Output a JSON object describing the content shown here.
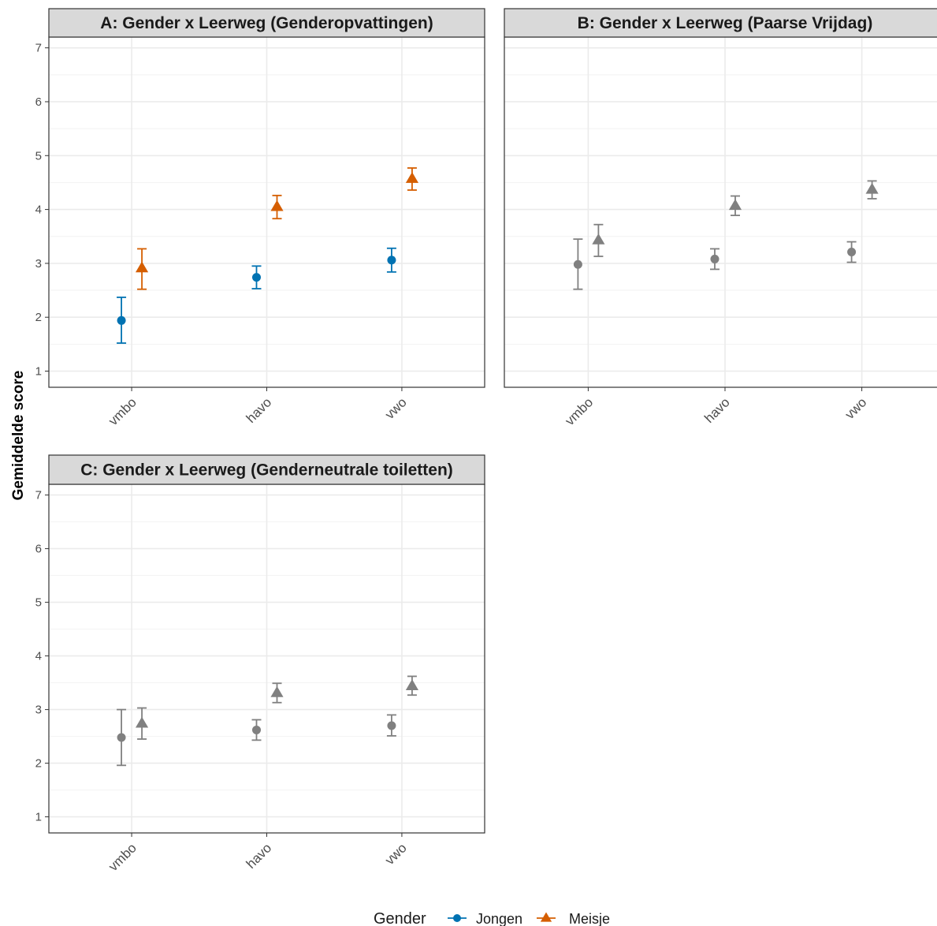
{
  "chart_data": [
    {
      "type": "scatter",
      "title": "A: Gender x Leerweg (Genderopvattingen)",
      "categories": [
        "vmbo",
        "havo",
        "vwo"
      ],
      "ylabel": "Gemiddelde score",
      "ylim": [
        0.7,
        7.2
      ],
      "yticks": [
        1,
        2,
        3,
        4,
        5,
        6,
        7
      ],
      "grid": true,
      "series": [
        {
          "name": "Jongen",
          "shape": "circle",
          "color": "#0072B2",
          "values": [
            1.94,
            2.74,
            3.06
          ],
          "lower": [
            1.52,
            2.53,
            2.84
          ],
          "upper": [
            2.37,
            2.95,
            3.28
          ]
        },
        {
          "name": "Meisje",
          "shape": "triangle",
          "color": "#D55E00",
          "values": [
            2.91,
            4.05,
            4.57
          ],
          "lower": [
            2.52,
            3.83,
            4.36
          ],
          "upper": [
            3.27,
            4.26,
            4.77
          ]
        }
      ]
    },
    {
      "type": "scatter",
      "title": "B: Gender x Leerweg (Paarse Vrijdag)",
      "categories": [
        "vmbo",
        "havo",
        "vwo"
      ],
      "ylim": [
        0.7,
        7.2
      ],
      "grid": true,
      "series": [
        {
          "name": "Jongen",
          "shape": "circle",
          "color": "#808080",
          "values": [
            2.98,
            3.08,
            3.21
          ],
          "lower": [
            2.52,
            2.89,
            3.02
          ],
          "upper": [
            3.45,
            3.27,
            3.4
          ]
        },
        {
          "name": "Meisje",
          "shape": "triangle",
          "color": "#808080",
          "values": [
            3.43,
            4.07,
            4.37
          ],
          "lower": [
            3.13,
            3.89,
            4.2
          ],
          "upper": [
            3.72,
            4.25,
            4.53
          ]
        }
      ]
    },
    {
      "type": "scatter",
      "title": "C: Gender x Leerweg (Genderneutrale toiletten)",
      "categories": [
        "vmbo",
        "havo",
        "vwo"
      ],
      "ylim": [
        0.7,
        7.2
      ],
      "yticks": [
        1,
        2,
        3,
        4,
        5,
        6,
        7
      ],
      "grid": true,
      "series": [
        {
          "name": "Jongen",
          "shape": "circle",
          "color": "#808080",
          "values": [
            2.48,
            2.62,
            2.7
          ],
          "lower": [
            1.96,
            2.43,
            2.51
          ],
          "upper": [
            3.0,
            2.81,
            2.9
          ]
        },
        {
          "name": "Meisje",
          "shape": "triangle",
          "color": "#808080",
          "values": [
            2.74,
            3.31,
            3.44
          ],
          "lower": [
            2.45,
            3.13,
            3.27
          ],
          "upper": [
            3.03,
            3.49,
            3.62
          ]
        }
      ]
    }
  ],
  "legend": {
    "title": "Gender",
    "position": "bottom",
    "items": [
      {
        "label": "Jongen",
        "shape": "circle",
        "color": "#0072B2"
      },
      {
        "label": "Meisje",
        "shape": "triangle",
        "color": "#D55E00"
      }
    ]
  },
  "y_axis_title": "Gemiddelde score"
}
